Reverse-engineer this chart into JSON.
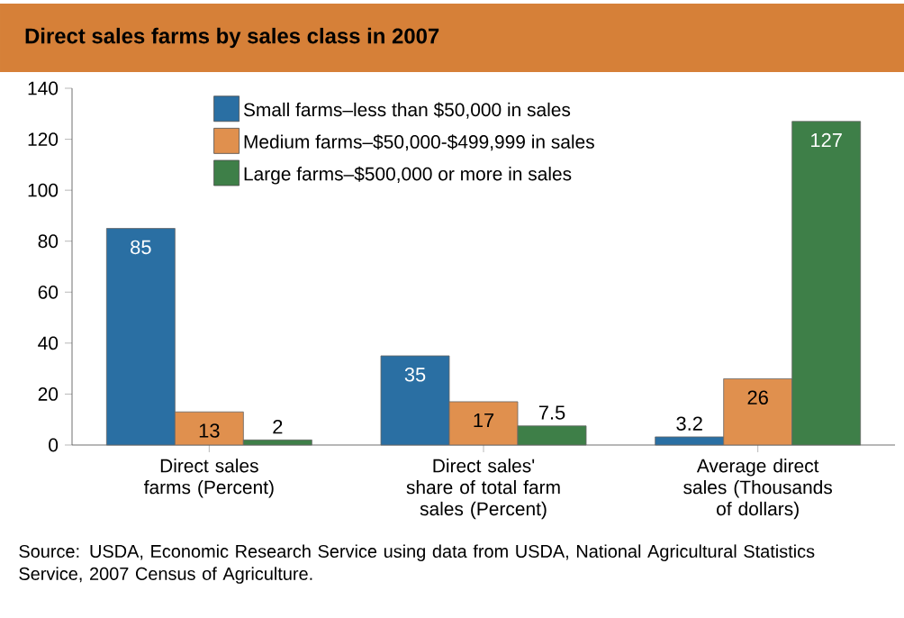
{
  "chart_data": {
    "type": "bar",
    "title": "Direct sales farms by sales class in 2007",
    "categories": [
      "Direct sales farms (Percent)",
      "Direct sales' share of total farm sales (Percent)",
      "Average direct sales (Thousands of dollars)"
    ],
    "series": [
      {
        "name": "Small farms–less than $50,000 in sales",
        "color": "#2a6fa3",
        "values": [
          85,
          35,
          3.2
        ]
      },
      {
        "name": "Medium farms–$50,000-$499,999 in sales",
        "color": "#e0904e",
        "values": [
          13,
          17,
          26
        ]
      },
      {
        "name": "Large farms–$500,000 or more in sales",
        "color": "#3e7f48",
        "values": [
          2,
          7.5,
          127
        ]
      }
    ],
    "ylim": [
      0,
      140
    ],
    "yticks": [
      0,
      20,
      40,
      60,
      80,
      100,
      120,
      140
    ],
    "data_labels": true,
    "legend": "top left",
    "annotations": [
      "Source: USDA, Economic Research Service using data from USDA, National Agricultural Statistics Service, 2007 Census of Agriculture."
    ]
  }
}
